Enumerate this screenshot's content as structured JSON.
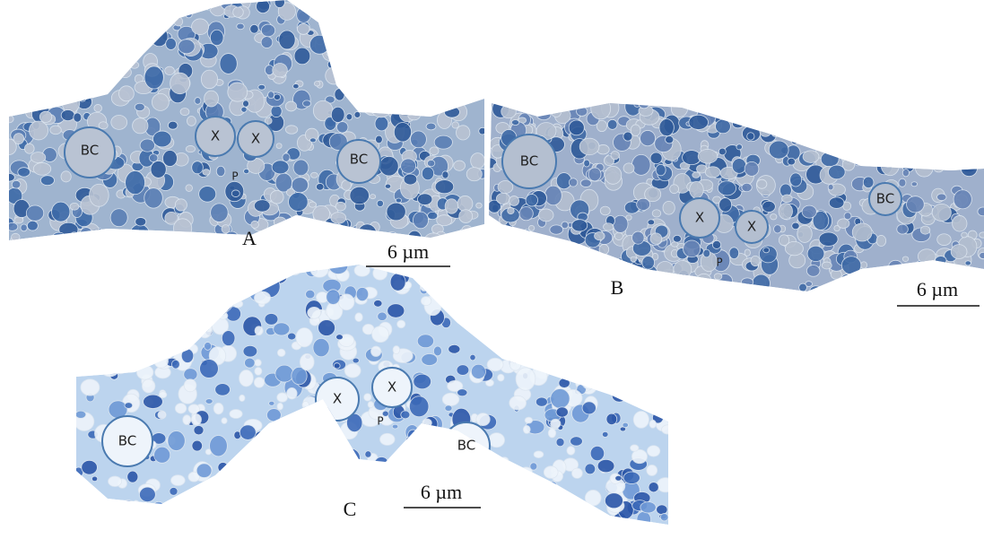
{
  "panels": [
    {
      "letter": "A",
      "scale_bar": "6 µm",
      "labels": [
        "BC",
        "X",
        "X",
        "P",
        "BC"
      ]
    },
    {
      "letter": "B",
      "scale_bar": "6 µm",
      "labels": [
        "BC",
        "X",
        "X",
        "P",
        "BC"
      ]
    },
    {
      "letter": "C",
      "scale_bar": "6 µm",
      "labels": [
        "BC",
        "X",
        "X",
        "P",
        "BC"
      ]
    }
  ]
}
